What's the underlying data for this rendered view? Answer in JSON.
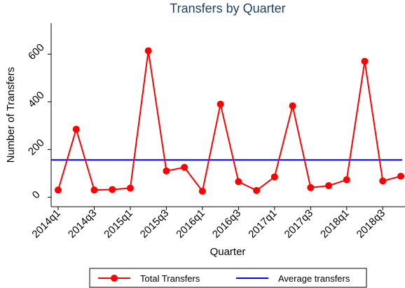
{
  "chart_data": {
    "type": "line",
    "title": "Transfers by Quarter",
    "x_label": "Quarter",
    "y_label": "Number of Transfers",
    "categories": [
      "2014q1",
      null,
      "2014q3",
      null,
      "2015q1",
      null,
      "2015q3",
      null,
      "2016q1",
      null,
      "2016q3",
      null,
      "2017q1",
      null,
      "2017q3",
      null,
      "2018q1",
      null,
      "2018q3",
      null
    ],
    "series": [
      {
        "name": "Total Transfers",
        "color": "#ff0000",
        "values": [
          30,
          285,
          30,
          32,
          38,
          614,
          110,
          125,
          25,
          390,
          65,
          28,
          85,
          383,
          40,
          48,
          73,
          570,
          68,
          88
        ]
      }
    ],
    "reference_line": {
      "name": "Average transfers",
      "color": "#0000ff",
      "value": 156
    },
    "ylim": [
      -40,
      730
    ],
    "yticks": [
      0,
      200,
      400,
      600
    ],
    "grid": false
  }
}
